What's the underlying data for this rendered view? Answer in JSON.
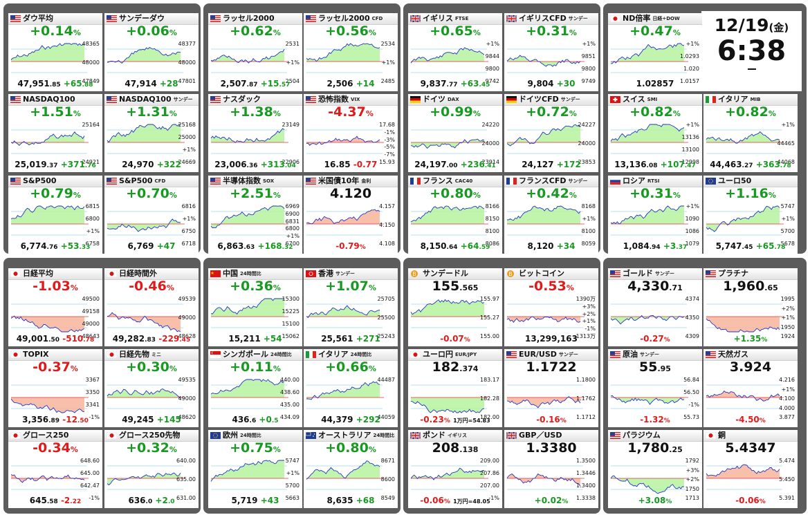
{
  "clock": {
    "date": "12/19",
    "weekday": "(金)",
    "time": "6:38"
  },
  "colors": {
    "up": "#189a22",
    "down": "#e01a1a",
    "panel": "#5c5c5c",
    "up_fill": "#b6f29e",
    "down_fill": "#f7b59b",
    "line": "#2233cc"
  },
  "cards": [
    {
      "flag": "us",
      "name": "ダウ平均",
      "sub": "",
      "main": "+0.14",
      "dir": "up",
      "pct": "%",
      "l1": "47,951",
      "l2": ".85",
      "chg": "+65",
      "chg2": ".88",
      "note": "",
      "labels": [
        "48365",
        "48000",
        "47849"
      ]
    },
    {
      "flag": "us",
      "name": "サンデーダウ",
      "sub": "",
      "main": "+0.06",
      "dir": "up",
      "pct": "%",
      "l1": "47,914",
      "l2": "",
      "chg": "+28",
      "chg2": "",
      "note": "",
      "labels": [
        "48377",
        "48000",
        "47801"
      ]
    },
    {
      "flag": "us",
      "name": "ラッセル2000",
      "sub": "",
      "main": "+0.62",
      "dir": "up",
      "pct": "%",
      "l1": "2,507",
      "l2": ".87",
      "chg": "+15",
      "chg2": ".57",
      "note": "",
      "labels": [
        "2531",
        "+1%",
        "2504"
      ]
    },
    {
      "flag": "us",
      "name": "ラッセル2000",
      "sub": "CFD",
      "main": "+0.56",
      "dir": "up",
      "pct": "%",
      "l1": "2,506",
      "l2": "",
      "chg": "+14",
      "chg2": "",
      "note": "",
      "labels": [
        "2534",
        "+1%",
        "2485"
      ]
    },
    {
      "flag": "gb",
      "name": "イギリス",
      "sub": "FTSE",
      "main": "+0.65",
      "dir": "up",
      "pct": "%",
      "l1": "9,837",
      "l2": ".77",
      "chg": "+63",
      "chg2": ".45",
      "note": "",
      "labels": [
        "+1%",
        "9844",
        "9800",
        "9742"
      ]
    },
    {
      "flag": "gb",
      "name": "イギリスCFD",
      "sub": "サンデー",
      "main": "+0.31",
      "dir": "up",
      "pct": "%",
      "l1": "9,804",
      "l2": "",
      "chg": "+30",
      "chg2": "",
      "note": "",
      "labels": [
        "+1%",
        "9851",
        "9800",
        "9749"
      ]
    },
    {
      "flag": "jp",
      "name": "ND倍率",
      "sub": "日経÷DOW",
      "main": "+0.47",
      "dir": "up",
      "pct": "%",
      "l1": "1.02857",
      "l2": "",
      "chg": "",
      "chg2": "",
      "note": "",
      "labels": [
        "+1%",
        "1.0293",
        "1.020",
        "1.0157"
      ]
    },
    {
      "flag": "us",
      "name": "NASDAQ100",
      "sub": "",
      "main": "+1.51",
      "dir": "up",
      "pct": "%",
      "l1": "25,019",
      "l2": ".37",
      "chg": "+371",
      "chg2": ".76",
      "note": "",
      "labels": [
        "25164",
        "24921"
      ]
    },
    {
      "flag": "us",
      "name": "NASDAQ100",
      "sub": "サンデー",
      "main": "+1.31",
      "dir": "up",
      "pct": "%",
      "l1": "24,970",
      "l2": "",
      "chg": "+322",
      "chg2": "",
      "note": "",
      "labels": [
        "25168",
        "25000",
        "+1%",
        "24669"
      ]
    },
    {
      "flag": "us",
      "name": "ナスダック",
      "sub": "",
      "main": "+1.38",
      "dir": "up",
      "pct": "%",
      "l1": "23,006",
      "l2": ".36",
      "chg": "+313",
      "chg2": ".04",
      "note": "",
      "labels": [
        "23149",
        "22906"
      ]
    },
    {
      "flag": "us",
      "name": "恐怖指数",
      "sub": "VIX",
      "main": "-4.37",
      "dir": "dn",
      "pct": "%",
      "l1": "16.85",
      "l2": "",
      "chg": "-0.77",
      "chg2": "",
      "note": "",
      "labels": [
        "17.68",
        "-1%",
        "-3%",
        "-5%",
        "-7%",
        "15.93"
      ]
    },
    {
      "flag": "de",
      "name": "ドイツ",
      "sub": "DAX",
      "main": "+0.99",
      "dir": "up",
      "pct": "%",
      "l1": "24,197",
      "l2": ".00",
      "chg": "+236",
      "chg2": ".41",
      "note": "",
      "labels": [
        "24220",
        "24000",
        "23914"
      ]
    },
    {
      "flag": "de",
      "name": "ドイツCFD",
      "sub": "サンデー",
      "main": "+0.72",
      "dir": "up",
      "pct": "%",
      "l1": "24,127",
      "l2": "",
      "chg": "+172",
      "chg2": "",
      "note": "",
      "labels": [
        "24227",
        "24000",
        "23853"
      ]
    },
    {
      "flag": "ch",
      "name": "スイス",
      "sub": "SMI",
      "main": "+0.82",
      "dir": "up",
      "pct": "%",
      "l1": "13,136",
      "l2": ".08",
      "chg": "+107",
      "chg2": ".47",
      "note": "",
      "labels": [
        "+1%",
        "13136",
        "13100",
        "12998"
      ]
    },
    {
      "flag": "it",
      "name": "イタリア",
      "sub": "MIB",
      "main": "+0.82",
      "dir": "up",
      "pct": "%",
      "l1": "44,463",
      "l2": ".27",
      "chg": "+363",
      "chg2": ".78",
      "note": "",
      "labels": [
        "+1%",
        "44465",
        "44068"
      ]
    },
    {
      "flag": "us",
      "name": "S&P500",
      "sub": "",
      "main": "+0.79",
      "dir": "up",
      "pct": "%",
      "l1": "6,774",
      "l2": ".76",
      "chg": "+53",
      "chg2": ".33",
      "note": "",
      "labels": [
        "6815",
        "6800",
        "+1%",
        "6758"
      ]
    },
    {
      "flag": "us",
      "name": "S&P500",
      "sub": "CFD",
      "main": "+0.70",
      "dir": "up",
      "pct": "%",
      "l1": "6,769",
      "l2": "",
      "chg": "+47",
      "chg2": "",
      "note": "",
      "labels": [
        "6816",
        "+1%",
        "6750",
        "6718"
      ]
    },
    {
      "flag": "us",
      "name": "半導体指数",
      "sub": "SOX",
      "main": "+2.51",
      "dir": "up",
      "pct": "%",
      "l1": "6,863",
      "l2": ".63",
      "chg": "+168",
      "chg2": ".32",
      "note": "",
      "labels": [
        "6969",
        "6900",
        "6831",
        "6800",
        "+1%",
        "6700"
      ]
    },
    {
      "flag": "us",
      "name": "米国債10年",
      "sub": "金利",
      "main": "4.120",
      "dir": "nb",
      "pct": "",
      "l1": "",
      "l2": "",
      "chg": "-0.79",
      "chg2": "%",
      "note": "",
      "labels": [
        "4.157",
        "4.150",
        "4.108"
      ]
    },
    {
      "flag": "fr",
      "name": "フランス",
      "sub": "CAC40",
      "main": "+0.80",
      "dir": "up",
      "pct": "%",
      "l1": "8,150",
      "l2": ".64",
      "chg": "+64",
      "chg2": ".59",
      "note": "",
      "labels": [
        "8166",
        "8150",
        "8100",
        "8086"
      ]
    },
    {
      "flag": "fr",
      "name": "フランスCFD",
      "sub": "サンデー",
      "main": "+0.42",
      "dir": "up",
      "pct": "%",
      "l1": "8,120",
      "l2": "",
      "chg": "+34",
      "chg2": "",
      "note": "",
      "labels": [
        "8168",
        "+1%",
        "8100",
        "8059"
      ]
    },
    {
      "flag": "ru",
      "name": "ロシア",
      "sub": "RTSI",
      "main": "+0.31",
      "dir": "up",
      "pct": "%",
      "l1": "1,084",
      "l2": ".94",
      "chg": "+3",
      "chg2": ".37",
      "note": "",
      "labels": [
        "+1%",
        "1090",
        "1086",
        "1079"
      ]
    },
    {
      "flag": "eu",
      "name": "ユーロ50",
      "sub": "",
      "main": "+1.16",
      "dir": "up",
      "pct": "%",
      "l1": "5,747",
      "l2": ".45",
      "chg": "+65",
      "chg2": ".78",
      "note": "",
      "labels": [
        "5747",
        "+1%",
        "5700",
        "5678"
      ]
    },
    {
      "flag": "jp",
      "name": "日経平均",
      "sub": "",
      "main": "-1.03",
      "dir": "dn",
      "pct": "%",
      "l1": "49,001",
      "l2": ".50",
      "chg": "-510",
      "chg2": ".78",
      "note": "",
      "labels": [
        "49500",
        "49158",
        "49000",
        "48643"
      ]
    },
    {
      "flag": "jp",
      "name": "日経時間外",
      "sub": "",
      "main": "-0.46",
      "dir": "dn",
      "pct": "%",
      "l1": "49,282",
      "l2": ".83",
      "chg": "-229",
      "chg2": ".45",
      "note": "",
      "labels": [
        "49539",
        "49000",
        "48628"
      ]
    },
    {
      "flag": "cn",
      "name": "中国",
      "sub": "24時間比",
      "main": "+0.36",
      "dir": "up",
      "pct": "%",
      "l1": "15,211",
      "l2": "",
      "chg": "+54",
      "chg2": "",
      "note": "",
      "labels": [
        "15300",
        "15225",
        "15100",
        "15062"
      ]
    },
    {
      "flag": "hk",
      "name": "香港",
      "sub": "サンデー",
      "main": "+1.07",
      "dir": "up",
      "pct": "%",
      "l1": "25,561",
      "l2": "",
      "chg": "+271",
      "chg2": "",
      "note": "",
      "labels": [
        "25705",
        "25500",
        "25243"
      ]
    },
    {
      "flag": "btc",
      "name": "サンデードル",
      "sub": "",
      "main": "155",
      "main2": ".565",
      "dir": "nb",
      "pct": "",
      "l1": "",
      "l2": "",
      "chg": "-0.07",
      "chg2": "%",
      "note": "",
      "labels": [
        "155.97",
        "155.27",
        "155.00"
      ]
    },
    {
      "flag": "btc",
      "name": "ビットコイン",
      "sub": "",
      "main": "-0.53",
      "dir": "dn",
      "pct": "%",
      "l1": "13,299,163",
      "l2": "",
      "chg": "",
      "chg2": "",
      "note": "",
      "labels": [
        "1390万",
        "+3%",
        "+2%",
        "+1%",
        "-1%",
        "1313万"
      ]
    },
    {
      "flag": "us",
      "name": "ゴールド",
      "sub": "サンデー",
      "main": "4,330",
      "main2": ".71",
      "dir": "nb",
      "pct": "",
      "l1": "",
      "l2": "",
      "chg": "-0.27",
      "chg2": "%",
      "note": "",
      "labels": [
        "4374",
        "4350",
        "4309"
      ]
    },
    {
      "flag": "us",
      "name": "プラチナ",
      "sub": "",
      "main": "1,960",
      "main2": ".65",
      "dir": "nb",
      "pct": "",
      "l1": "",
      "l2": "",
      "chg": "+1.35",
      "chg2": "%",
      "note": "",
      "labels": [
        "1995",
        "+2%",
        "+1%",
        "1950",
        "1924"
      ]
    },
    {
      "flag": "jp",
      "name": "TOPIX",
      "sub": "",
      "main": "-0.37",
      "dir": "dn",
      "pct": "%",
      "l1": "3,356",
      "l2": ".89",
      "chg": "-12",
      "chg2": ".50",
      "note": "",
      "labels": [
        "3367",
        "3350",
        "3341",
        "-1%"
      ]
    },
    {
      "flag": "jp",
      "name": "日経先物",
      "sub": "ミニ",
      "main": "+0.30",
      "dir": "up",
      "pct": "%",
      "l1": "49,245",
      "l2": "",
      "chg": "+145",
      "chg2": "",
      "note": "",
      "labels": [
        "49535",
        "49000",
        "48620"
      ]
    },
    {
      "flag": "sg",
      "name": "シンガポール",
      "sub": "24時間比",
      "main": "+0.11",
      "dir": "up",
      "pct": "%",
      "l1": "436",
      "l2": ".6",
      "chg": "+0",
      "chg2": ".5",
      "note": "",
      "labels": [
        "440.00",
        "438.60",
        "435.00",
        "434.09"
      ]
    },
    {
      "flag": "it",
      "name": "イタリア",
      "sub": "24時間比",
      "main": "+0.66",
      "dir": "up",
      "pct": "%",
      "l1": "44,379",
      "l2": "",
      "chg": "+292",
      "chg2": "",
      "note": "",
      "labels": [
        "44487",
        "44059"
      ]
    },
    {
      "flag": "jp",
      "name": "ユーロ円",
      "sub": "EUR/JPY",
      "main": "182",
      "main2": ".374",
      "dir": "nb",
      "pct": "",
      "l1": "",
      "l2": "",
      "chg": "-0.23",
      "chg2": "%",
      "note": "1万円=54.83",
      "labels": [
        "183.17",
        "182.28",
        "182.00"
      ]
    },
    {
      "flag": "us",
      "name": "EUR/USD",
      "sub": "サンデー",
      "main": "1.1722",
      "dir": "nb",
      "pct": "",
      "l1": "",
      "l2": "",
      "chg": "-0.16",
      "chg2": "%",
      "note": "",
      "labels": [
        "1.1800",
        "1.1762",
        "1.1712"
      ]
    },
    {
      "flag": "us",
      "name": "原油",
      "sub": "サンデー",
      "main": "55",
      "main2": ".95",
      "dir": "nb",
      "pct": "",
      "l1": "",
      "l2": "",
      "chg": "-1.32",
      "chg2": "%",
      "note": "",
      "labels": [
        "56.84",
        "56.50",
        "-1%",
        "55.73"
      ]
    },
    {
      "flag": "us",
      "name": "天然ガス",
      "sub": "",
      "main": "3.924",
      "dir": "nb",
      "pct": "",
      "l1": "",
      "l2": "",
      "chg": "-4.50",
      "chg2": "%",
      "note": "",
      "labels": [
        "4.216",
        "+1%",
        "4.100",
        "4.000",
        "3.877"
      ]
    },
    {
      "flag": "jp",
      "name": "グロース250",
      "sub": "",
      "main": "-0.34",
      "dir": "dn",
      "pct": "%",
      "l1": "645",
      "l2": ".58",
      "chg": "-2",
      "chg2": ".22",
      "note": "",
      "labels": [
        "648.60",
        "645.00",
        "642.47",
        "-1%"
      ]
    },
    {
      "flag": "jp",
      "name": "グロース250先物",
      "sub": "",
      "main": "+0.32",
      "dir": "up",
      "pct": "%",
      "l1": "636",
      "l2": ".0",
      "chg": "+2",
      "chg2": ".0",
      "note": "",
      "labels": [
        "640.00",
        "635.00",
        "631.00"
      ]
    },
    {
      "flag": "eu",
      "name": "欧州",
      "sub": "24時間比",
      "main": "+0.75",
      "dir": "up",
      "pct": "%",
      "l1": "5,719",
      "l2": "",
      "chg": "+43",
      "chg2": "",
      "note": "",
      "labels": [
        "5747",
        "+1%",
        "5700",
        "5663"
      ]
    },
    {
      "flag": "au",
      "name": "オーストラリア",
      "sub": "24時間比",
      "main": "+0.80",
      "dir": "up",
      "pct": "%",
      "l1": "8,635",
      "l2": "",
      "chg": "+68",
      "chg2": "",
      "note": "",
      "labels": [
        "8671",
        "8600",
        "8549"
      ]
    },
    {
      "flag": "gb",
      "name": "ポンド",
      "sub": "イギリス",
      "main": "208",
      "main2": ".138",
      "dir": "nb",
      "pct": "",
      "l1": "",
      "l2": "",
      "chg": "-0.06",
      "chg2": "%",
      "note": "1万円=48.05",
      "labels": [
        "209.00",
        "207.86",
        "207.00",
        "-1%"
      ]
    },
    {
      "flag": "gb",
      "name": "GBP／USD",
      "sub": "",
      "main": "1.3380",
      "dir": "nb",
      "pct": "",
      "l1": "",
      "l2": "",
      "chg": "+0.02",
      "chg2": "%",
      "note": "",
      "labels": [
        "1.3500",
        "1.3446",
        "1.3400",
        "1.3338"
      ]
    },
    {
      "flag": "us",
      "name": "パラジウム",
      "sub": "",
      "main": "1,780",
      "main2": ".25",
      "dir": "nb",
      "pct": "",
      "l1": "",
      "l2": "",
      "chg": "+3.08",
      "chg2": "%",
      "note": "",
      "labels": [
        "1792",
        "+3%",
        "+2%",
        "1750",
        "1713"
      ]
    },
    {
      "flag": "jp",
      "name": "銅",
      "sub": "",
      "main": "5.4347",
      "dir": "nb",
      "pct": "",
      "l1": "",
      "l2": "",
      "chg": "-0.06",
      "chg2": "%",
      "note": "",
      "labels": [
        "5.474",
        "5.450",
        "5.391"
      ]
    }
  ]
}
